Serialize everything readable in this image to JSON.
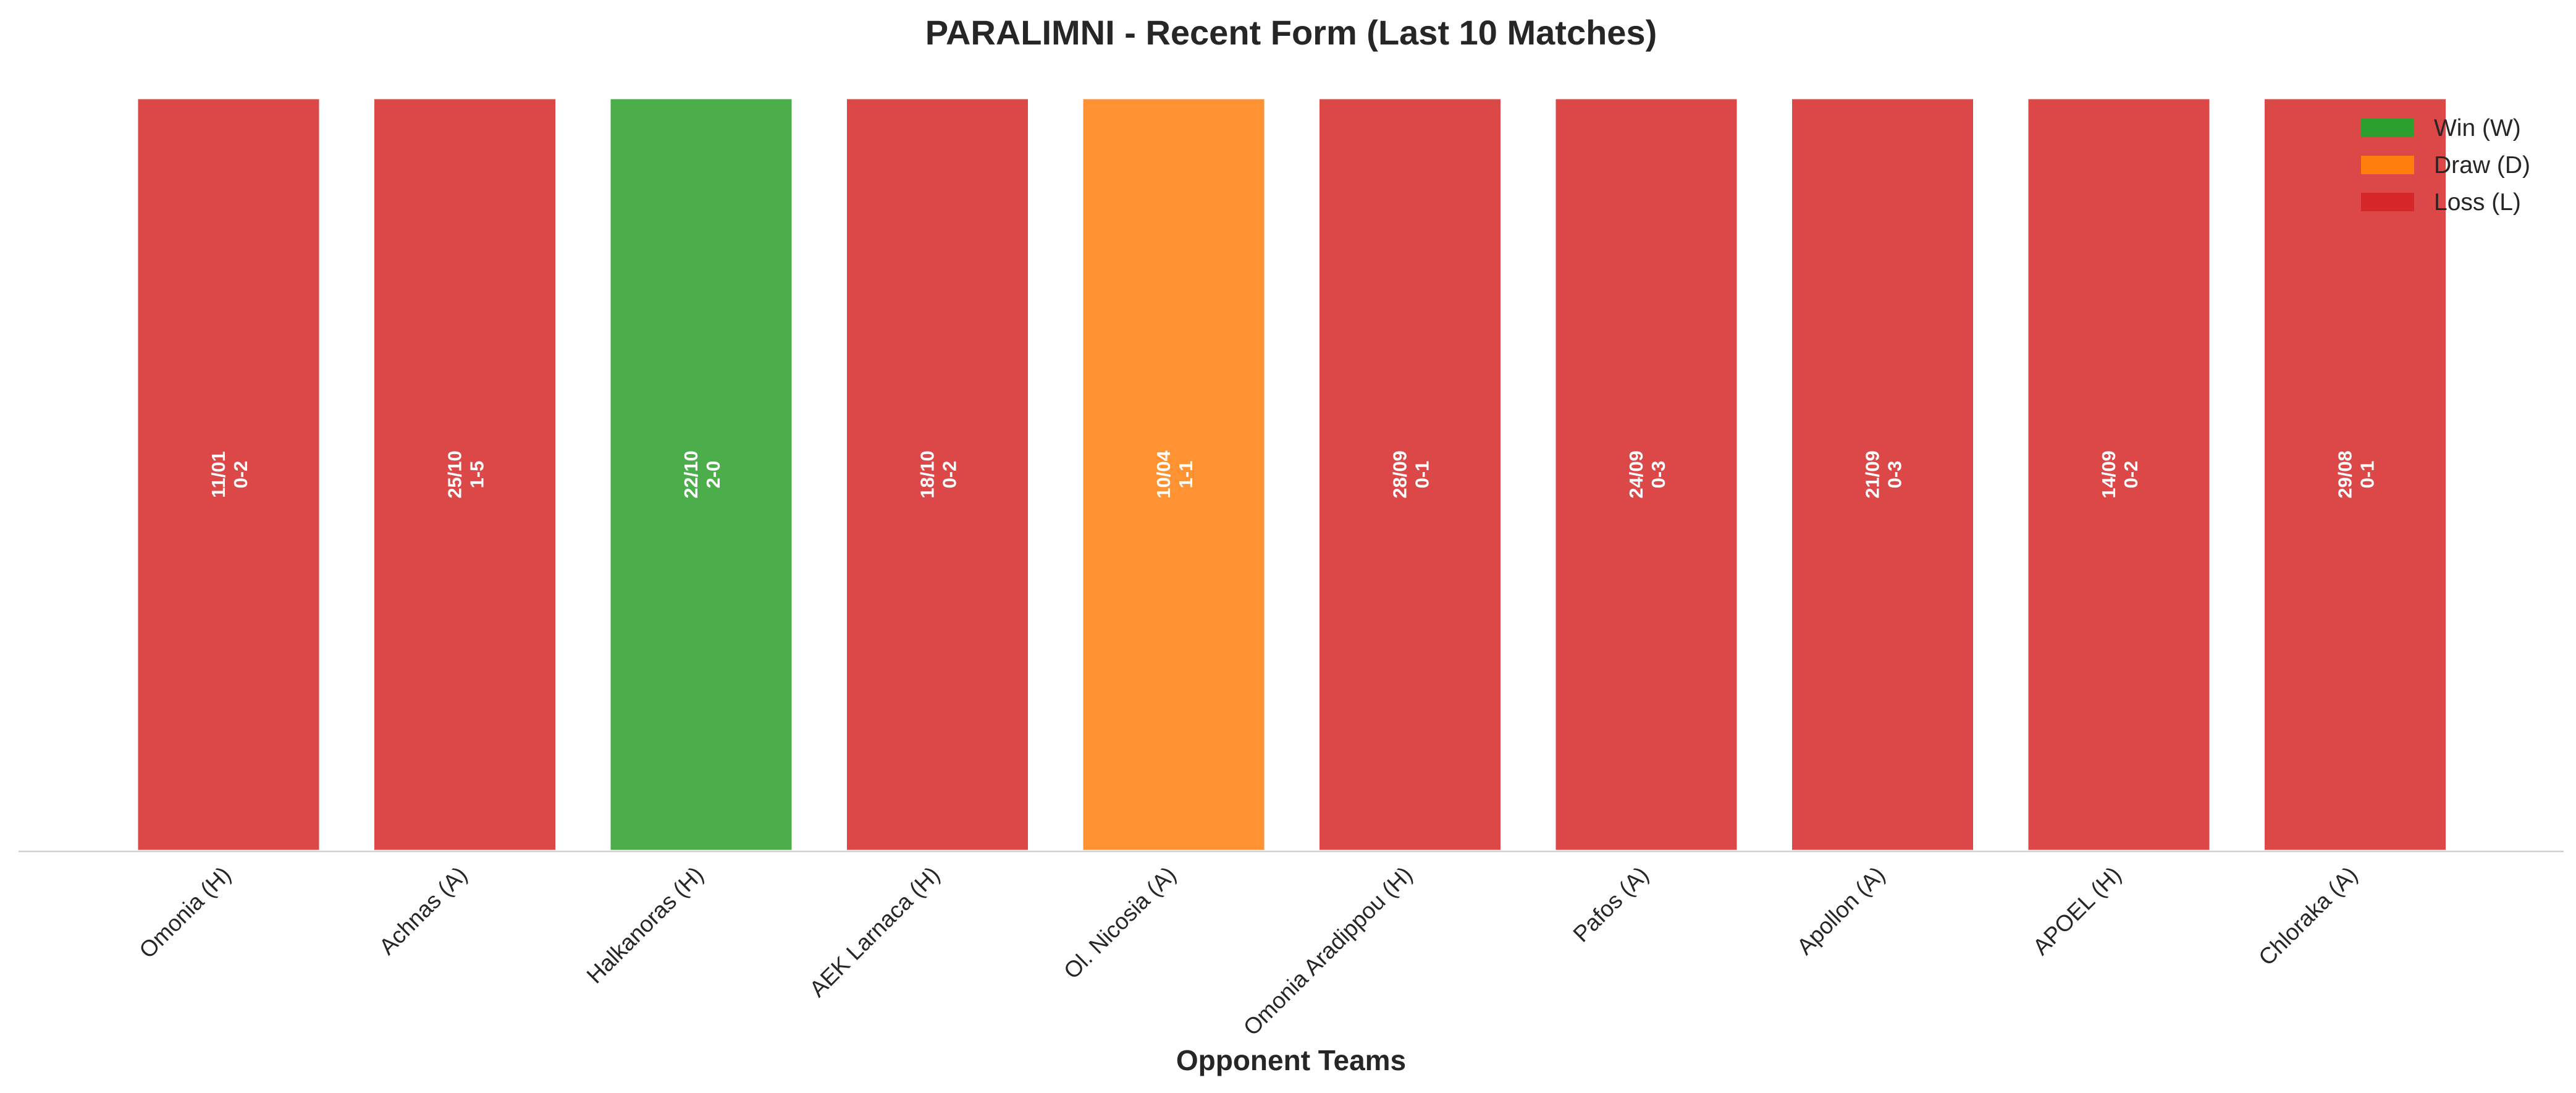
{
  "chart_data": {
    "type": "bar",
    "title": "PARALIMNI - Recent Form (Last 10 Matches)",
    "xlabel": "Opponent Teams",
    "ylabel": "",
    "ylim": [
      0,
      1
    ],
    "grid": false,
    "legend_position": "top-right",
    "categories": [
      "Omonia (H)",
      "Achnas (A)",
      "Halkanoras (H)",
      "AEK Larnaca (H)",
      "Ol. Nicosia (A)",
      "Omonia Aradippou (H)",
      "Pafos (A)",
      "Apollon (A)",
      "APOEL (H)",
      "Chloraka (A)"
    ],
    "values": [
      1,
      1,
      1,
      1,
      1,
      1,
      1,
      1,
      1,
      1
    ],
    "results": [
      "L",
      "L",
      "W",
      "L",
      "D",
      "L",
      "L",
      "L",
      "L",
      "L"
    ],
    "dates": [
      "11/01",
      "25/10",
      "22/10",
      "18/10",
      "10/04",
      "28/09",
      "24/09",
      "21/09",
      "14/09",
      "29/08"
    ],
    "scores": [
      "0-2",
      "1-5",
      "2-0",
      "0-2",
      "1-1",
      "0-1",
      "0-3",
      "0-3",
      "0-2",
      "0-1"
    ],
    "legend": [
      {
        "key": "W",
        "label": "Win (W)",
        "color": "#2ca02c"
      },
      {
        "key": "D",
        "label": "Draw (D)",
        "color": "#ff7f0e"
      },
      {
        "key": "L",
        "label": "Loss (L)",
        "color": "#d62728"
      }
    ]
  }
}
